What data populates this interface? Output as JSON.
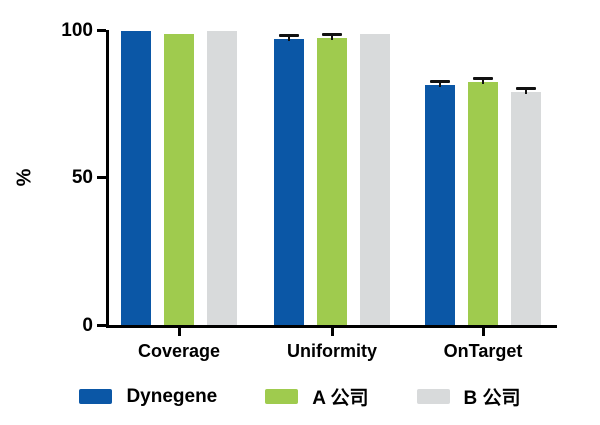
{
  "chart_data": {
    "type": "bar",
    "title": "",
    "ylabel": "%",
    "xlabel": "",
    "categories": [
      "Coverage",
      "Uniformity",
      "OnTarget"
    ],
    "series": [
      {
        "name": "Dynegene",
        "color": "#0B57A6",
        "values": [
          99.7,
          96.9,
          81.5
        ],
        "errors": [
          0,
          0.6,
          0.7
        ]
      },
      {
        "name": "A 公司",
        "color": "#9FCB4E",
        "values": [
          98.7,
          97.3,
          82.5
        ],
        "errors": [
          0,
          0.6,
          0.7
        ]
      },
      {
        "name": "B 公司",
        "color": "#D8DADB",
        "values": [
          99.5,
          98.8,
          79.0
        ],
        "errors": [
          0,
          0,
          0.7
        ]
      }
    ],
    "ylim": [
      0,
      100
    ],
    "yticks": [
      0,
      50,
      100
    ],
    "grid": false,
    "legend_position": "bottom",
    "error_bar_color": "#111111",
    "axis_color": "#000000"
  }
}
